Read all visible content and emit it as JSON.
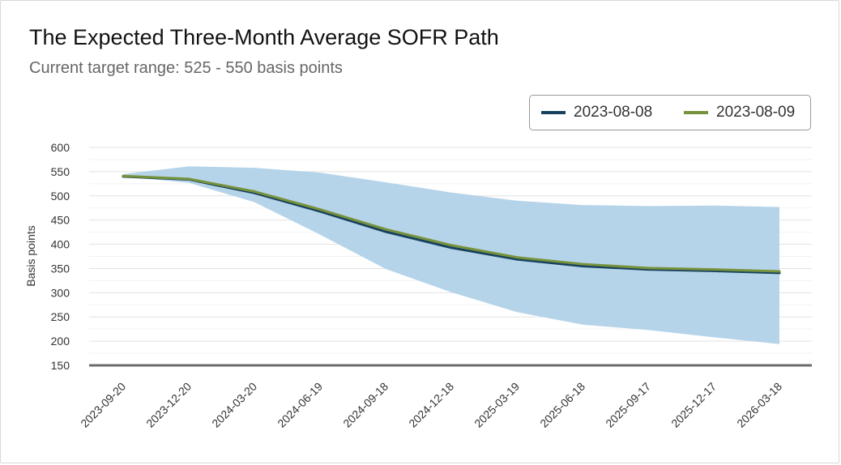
{
  "header": {
    "title": "The Expected Three-Month Average SOFR Path",
    "subtitle": "Current target range: 525 - 550 basis points"
  },
  "legend": {
    "items": [
      {
        "label": "2023-08-08",
        "color": "#17425f"
      },
      {
        "label": "2023-08-09",
        "color": "#77923c"
      }
    ]
  },
  "chart_data": {
    "type": "line",
    "title": "The Expected Three-Month Average SOFR Path",
    "subtitle": "Current target range: 525 - 550 basis points",
    "xlabel": "",
    "ylabel": "Basis points",
    "categories": [
      "2023-09-20",
      "2023-12-20",
      "2024-03-20",
      "2024-06-19",
      "2024-09-18",
      "2024-12-18",
      "2025-03-19",
      "2025-06-18",
      "2025-09-17",
      "2025-12-17",
      "2026-03-18"
    ],
    "ylim": [
      150,
      600
    ],
    "yticks": [
      150,
      200,
      250,
      300,
      350,
      400,
      450,
      500,
      550,
      600
    ],
    "grid": true,
    "legend_position": "top-right",
    "band": {
      "color": "#b6d4e9",
      "upper": [
        545,
        561,
        558,
        548,
        528,
        507,
        490,
        481,
        479,
        480,
        477
      ],
      "lower": [
        540,
        527,
        487,
        420,
        349,
        301,
        260,
        234,
        223,
        208,
        194
      ]
    },
    "series": [
      {
        "name": "2023-08-08",
        "color": "#17425f",
        "values": [
          540,
          534,
          506,
          468,
          426,
          393,
          369,
          355,
          348,
          345,
          341
        ]
      },
      {
        "name": "2023-08-09",
        "color": "#77923c",
        "values": [
          541,
          535,
          509,
          472,
          431,
          398,
          373,
          359,
          351,
          348,
          344
        ]
      }
    ]
  }
}
